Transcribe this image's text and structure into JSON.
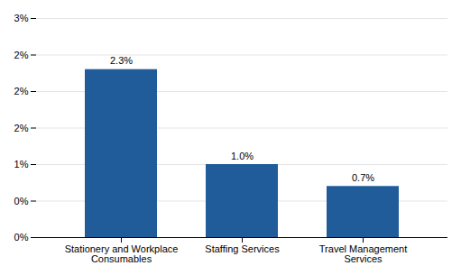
{
  "chart_data": {
    "type": "bar",
    "categories": [
      "Stationery and Workplace\nConsumables",
      "Staffing Services",
      "Travel Management\nServices"
    ],
    "values": [
      2.3,
      1.0,
      0.7
    ],
    "value_labels": [
      "2.3%",
      "1.0%",
      "0.7%"
    ],
    "color": "#1F5C99",
    "ylim": [
      0,
      3.0
    ],
    "yticks": [
      {
        "value": 0.0,
        "label": "0%"
      },
      {
        "value": 0.5,
        "label": "0%"
      },
      {
        "value": 1.0,
        "label": "1%"
      },
      {
        "value": 1.5,
        "label": "2%"
      },
      {
        "value": 2.0,
        "label": "2%"
      },
      {
        "value": 2.5,
        "label": "2%"
      },
      {
        "value": 3.0,
        "label": "3%"
      }
    ],
    "grid": true,
    "data_labels": true
  }
}
